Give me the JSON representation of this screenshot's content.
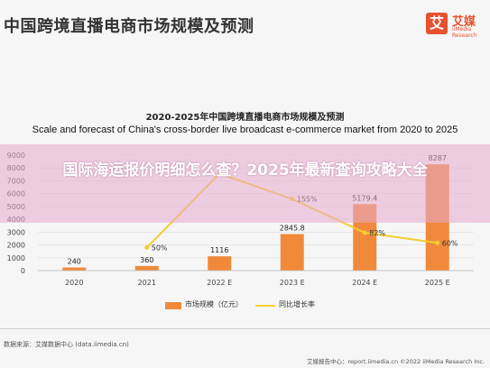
{
  "header": {
    "title": "中国跨境直播电商市场规模及预测",
    "logo_mark": "艾",
    "logo_cn": "艾媒",
    "logo_en": "iiMedia Research"
  },
  "overlay": {
    "text": "国际海运报价明细怎么查？2025年最新查询攻略大全"
  },
  "footer": {
    "source": "数据来源：艾媒数据中心 (data.iimedia.cn)",
    "right": "艾媒报告中心：report.iimedia.cn ©2022 iiMedia Research Inc."
  },
  "chart_data": {
    "type": "bar",
    "title": "2020-2025年中国跨境直播电商市场规模及预测",
    "subtitle": "Scale and forecast of China's cross-border live broadcast e-commerce market from 2020 to 2025",
    "categories": [
      "2020",
      "2021",
      "2022 E",
      "2023 E",
      "2024 E",
      "2025 E"
    ],
    "series": [
      {
        "name": "市场规模（亿元）",
        "type": "bar",
        "color": "#f08a3a",
        "values": [
          240,
          360,
          1116,
          2845.8,
          5179.4,
          8287
        ],
        "labels": [
          "240",
          "360",
          "1116",
          "2845.8",
          "5179.4",
          "8287"
        ]
      },
      {
        "name": "同比增长率",
        "type": "line",
        "color": "#f4cd30",
        "values": [
          null,
          50,
          210,
          155,
          82,
          60
        ],
        "labels": [
          "",
          "50%",
          "",
          "155%",
          "82%",
          "60%"
        ]
      }
    ],
    "y_ticks": [
      "0",
      "1000",
      "2000",
      "3000",
      "4000",
      "5000",
      "6000",
      "7000",
      "8000",
      "9000"
    ],
    "ylim": [
      0,
      9000
    ],
    "rate_lim": [
      0,
      250
    ]
  }
}
